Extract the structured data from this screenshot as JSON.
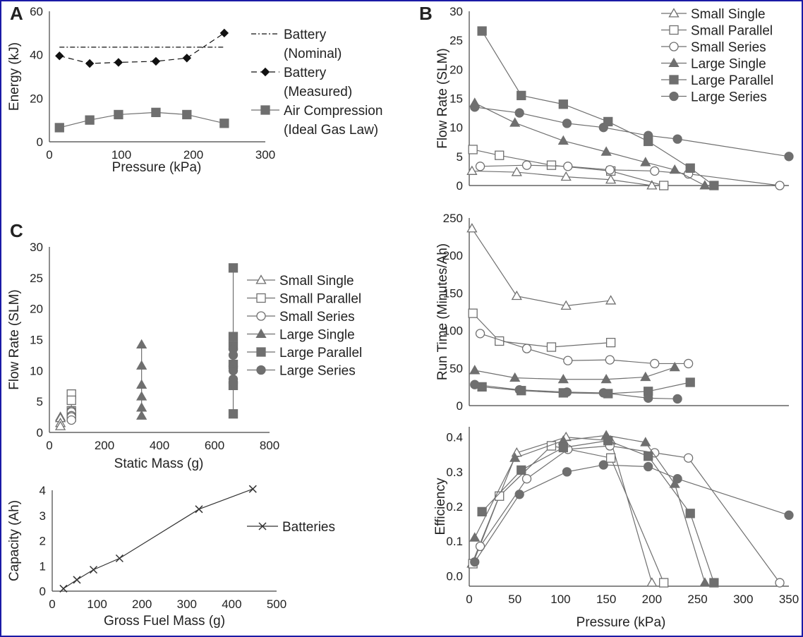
{
  "panel_labels": {
    "a": "A",
    "b": "B",
    "c": "C"
  },
  "colors": {
    "frame": "#1a1aa6",
    "series": "#6f6f6f",
    "dark": "#111111"
  },
  "chart_data": [
    {
      "id": "A",
      "type": "line",
      "xlabel": "Pressure (kPa)",
      "ylabel": "Energy (kJ)",
      "xlim": [
        0,
        300
      ],
      "ylim": [
        0,
        60
      ],
      "xticks": [
        0,
        100,
        200,
        300
      ],
      "yticks": [
        0,
        20,
        40,
        60
      ],
      "legend_position": "right",
      "series": [
        {
          "name": "Battery (Nominal)",
          "legend_lines": [
            "Battery",
            "(Nominal)"
          ],
          "style": "dashdot",
          "marker": "none",
          "x": [
            14,
            243
          ],
          "y": [
            43.5,
            43.5
          ]
        },
        {
          "name": "Battery (Measured)",
          "legend_lines": [
            "Battery",
            "(Measured)"
          ],
          "style": "dashed",
          "marker": "diamond",
          "x": [
            14,
            56,
            96,
            148,
            191,
            243
          ],
          "y": [
            39.5,
            36,
            36.5,
            37,
            38.5,
            50
          ]
        },
        {
          "name": "Air Compression (Ideal Gas Law)",
          "legend_lines": [
            "Air Compression",
            "(Ideal Gas Law)"
          ],
          "style": "solid",
          "marker": "square",
          "x": [
            14,
            56,
            96,
            148,
            191,
            243
          ],
          "y": [
            6.5,
            10,
            12.5,
            13.5,
            12.5,
            8.5
          ]
        }
      ]
    },
    {
      "id": "B-flow",
      "type": "line",
      "xlabel": "",
      "ylabel": "Flow Rate (SLM)",
      "xlim": [
        0,
        350
      ],
      "ylim": [
        0,
        30
      ],
      "yticks": [
        0,
        5,
        10,
        15,
        20,
        25,
        30
      ],
      "legend_position": "top-right",
      "series": [
        {
          "name": "Small Single",
          "marker": "triangle-open",
          "x": [
            3,
            52,
            106,
            155,
            200
          ],
          "y": [
            2.5,
            2.3,
            1.5,
            1.0,
            0
          ]
        },
        {
          "name": "Small Parallel",
          "marker": "square-open",
          "x": [
            4,
            33,
            90,
            155,
            213
          ],
          "y": [
            6.2,
            5.2,
            3.5,
            2.5,
            0
          ]
        },
        {
          "name": "Small Series",
          "marker": "circle-open",
          "x": [
            12,
            63,
            108,
            154,
            203,
            240,
            340
          ],
          "y": [
            3.3,
            3.5,
            3.3,
            2.7,
            2.5,
            2.0,
            0
          ]
        },
        {
          "name": "Large Single",
          "marker": "triangle",
          "x": [
            6,
            50,
            103,
            150,
            193,
            225,
            258
          ],
          "y": [
            14.2,
            10.8,
            7.7,
            5.8,
            4.0,
            2.7,
            0
          ]
        },
        {
          "name": "Large Parallel",
          "marker": "square",
          "x": [
            14,
            57,
            103,
            152,
            196,
            242,
            268
          ],
          "y": [
            26.6,
            15.5,
            14.0,
            11.0,
            7.6,
            3.0,
            0
          ]
        },
        {
          "name": "Large Series",
          "marker": "circle",
          "x": [
            6,
            55,
            107,
            147,
            196,
            228,
            350
          ],
          "y": [
            13.5,
            12.5,
            10.7,
            10.0,
            8.6,
            8.0,
            5.0
          ]
        }
      ]
    },
    {
      "id": "B-runtime",
      "type": "line",
      "xlabel": "",
      "ylabel": "Run Time (Minutes/Ah)",
      "xlim": [
        0,
        350
      ],
      "ylim": [
        0,
        250
      ],
      "yticks": [
        0,
        50,
        100,
        150,
        200,
        250
      ],
      "series": [
        {
          "name": "Small Single",
          "marker": "triangle-open",
          "x": [
            3,
            52,
            106,
            155
          ],
          "y": [
            236,
            146,
            133,
            140
          ]
        },
        {
          "name": "Small Parallel",
          "marker": "square-open",
          "x": [
            4,
            33,
            90,
            155
          ],
          "y": [
            123,
            86,
            78,
            84
          ]
        },
        {
          "name": "Small Series",
          "marker": "circle-open",
          "x": [
            12,
            63,
            108,
            154,
            203,
            240
          ],
          "y": [
            96,
            76,
            60,
            61,
            56,
            56
          ]
        },
        {
          "name": "Large Single",
          "marker": "triangle",
          "x": [
            6,
            50,
            103,
            150,
            193,
            225
          ],
          "y": [
            47,
            37,
            35,
            35,
            38,
            51
          ]
        },
        {
          "name": "Large Parallel",
          "marker": "square",
          "x": [
            14,
            57,
            103,
            152,
            196,
            242
          ],
          "y": [
            25,
            20,
            17,
            16,
            19,
            31
          ]
        },
        {
          "name": "Large Series",
          "marker": "circle",
          "x": [
            6,
            55,
            107,
            147,
            196,
            228
          ],
          "y": [
            28,
            21,
            18,
            17,
            10,
            9
          ]
        }
      ]
    },
    {
      "id": "B-efficiency",
      "type": "line",
      "xlabel": "Pressure (kPa)",
      "ylabel": "Efficiency",
      "xlim": [
        0,
        350
      ],
      "ylim": [
        -0.03,
        0.43
      ],
      "xticks": [
        0,
        50,
        100,
        150,
        200,
        250,
        300,
        350
      ],
      "yticks": [
        0.0,
        0.1,
        0.2,
        0.3,
        0.4
      ],
      "ytick_labels": [
        "0.0",
        "0.1",
        "0.2",
        "0.3",
        "0.4"
      ],
      "series": [
        {
          "name": "Small Single",
          "marker": "triangle-open",
          "x": [
            3,
            52,
            106,
            155,
            200
          ],
          "y": [
            0.035,
            0.355,
            0.4,
            0.39,
            -0.02
          ]
        },
        {
          "name": "Small Parallel",
          "marker": "square-open",
          "x": [
            4,
            33,
            90,
            155,
            213
          ],
          "y": [
            0.035,
            0.23,
            0.375,
            0.34,
            -0.02
          ]
        },
        {
          "name": "Small Series",
          "marker": "circle-open",
          "x": [
            12,
            63,
            108,
            154,
            203,
            240,
            340
          ],
          "y": [
            0.085,
            0.28,
            0.365,
            0.375,
            0.355,
            0.34,
            -0.02
          ]
        },
        {
          "name": "Large Single",
          "marker": "triangle",
          "x": [
            6,
            50,
            103,
            150,
            193,
            225,
            258
          ],
          "y": [
            0.11,
            0.34,
            0.39,
            0.405,
            0.385,
            0.265,
            -0.02
          ]
        },
        {
          "name": "Large Parallel",
          "marker": "square",
          "x": [
            14,
            57,
            103,
            152,
            196,
            242,
            268
          ],
          "y": [
            0.185,
            0.305,
            0.37,
            0.39,
            0.345,
            0.18,
            -0.02
          ]
        },
        {
          "name": "Large Series",
          "marker": "circle",
          "x": [
            6,
            55,
            107,
            147,
            196,
            228,
            350
          ],
          "y": [
            0.04,
            0.235,
            0.3,
            0.32,
            0.315,
            0.28,
            0.175
          ]
        }
      ]
    },
    {
      "id": "C-flow-vs-mass",
      "type": "scatter",
      "xlabel": "Static Mass (g)",
      "ylabel": "Flow Rate (SLM)",
      "xlim": [
        0,
        800
      ],
      "ylim": [
        0,
        30
      ],
      "xticks": [
        0,
        200,
        400,
        600,
        800
      ],
      "yticks": [
        0,
        5,
        10,
        15,
        20,
        25,
        30
      ],
      "legend_position": "right",
      "series": [
        {
          "name": "Small Single",
          "marker": "triangle-open",
          "x": [
            40,
            40,
            40,
            40
          ],
          "y": [
            2.5,
            2.3,
            1.5,
            1.0
          ]
        },
        {
          "name": "Small Parallel",
          "marker": "square-open",
          "x": [
            80,
            80,
            80,
            80
          ],
          "y": [
            6.2,
            5.2,
            3.5,
            2.5
          ]
        },
        {
          "name": "Small Series",
          "marker": "circle-open",
          "x": [
            80,
            80,
            80,
            80,
            80,
            80
          ],
          "y": [
            3.5,
            3.3,
            3.3,
            2.7,
            2.5,
            2.0
          ]
        },
        {
          "name": "Large Single",
          "marker": "triangle",
          "x": [
            335,
            335,
            335,
            335,
            335,
            335
          ],
          "y": [
            14.2,
            10.8,
            7.7,
            5.8,
            4.0,
            2.7
          ]
        },
        {
          "name": "Large Parallel",
          "marker": "square",
          "x": [
            668,
            668,
            668,
            668,
            668,
            668
          ],
          "y": [
            26.6,
            15.5,
            14.0,
            11.0,
            7.6,
            3.0
          ]
        },
        {
          "name": "Large Series",
          "marker": "circle",
          "x": [
            668,
            668,
            668,
            668,
            668,
            668
          ],
          "y": [
            13.5,
            12.5,
            10.7,
            10.0,
            8.6,
            8.0
          ]
        }
      ]
    },
    {
      "id": "C-capacity",
      "type": "line",
      "xlabel": "Gross Fuel Mass (g)",
      "ylabel": "Capacity (Ah)",
      "xlim": [
        0,
        500
      ],
      "ylim": [
        0,
        4
      ],
      "xticks": [
        0,
        100,
        200,
        300,
        400,
        500
      ],
      "yticks": [
        0,
        1,
        2,
        3,
        4
      ],
      "legend_position": "right",
      "series": [
        {
          "name": "Batteries",
          "marker": "x",
          "x": [
            25,
            55,
            92,
            150,
            327,
            447
          ],
          "y": [
            0.1,
            0.45,
            0.85,
            1.3,
            3.25,
            4.05
          ]
        }
      ]
    }
  ]
}
